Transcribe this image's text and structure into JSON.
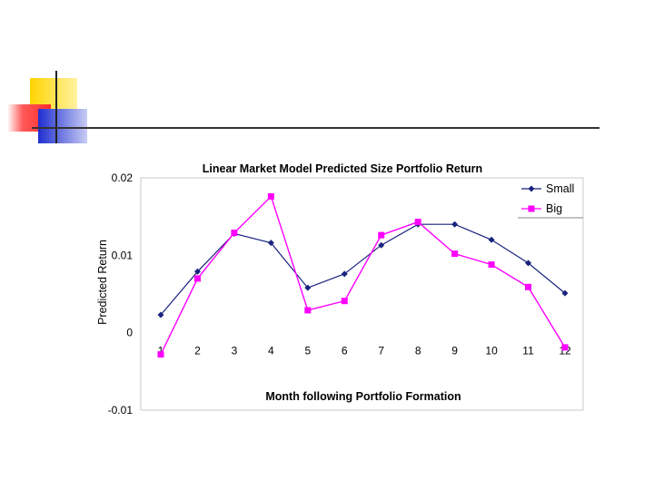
{
  "slide": {
    "accent_colors": {
      "yellow": "#ffd400",
      "red": "#ff3333",
      "blue": "#2233cc",
      "rule": "#333333"
    }
  },
  "chart_data": {
    "type": "line",
    "title": "Linear Market Model Predicted Size Portfolio Return",
    "xlabel": "Month following Portfolio Formation",
    "ylabel": "Predicted Return",
    "categories": [
      "1",
      "2",
      "3",
      "4",
      "5",
      "6",
      "7",
      "8",
      "9",
      "10",
      "11",
      "12"
    ],
    "ylim": [
      -0.01,
      0.02
    ],
    "yticks": [
      0.02,
      0.01,
      0,
      -0.01
    ],
    "ytick_labels": [
      "0.02",
      "0.01",
      "0",
      "-0.01"
    ],
    "grid": false,
    "legend_position": "top-right",
    "series": [
      {
        "name": "Small",
        "color": "#1a237e",
        "marker": "diamond",
        "values": [
          0.0023,
          0.0079,
          0.0128,
          0.0116,
          0.0058,
          0.0076,
          0.0113,
          0.014,
          0.014,
          0.012,
          0.009,
          0.0051
        ]
      },
      {
        "name": "Big",
        "color": "#ff00ff",
        "marker": "square",
        "values": [
          -0.0028,
          0.007,
          0.0129,
          0.0176,
          0.0029,
          0.0041,
          0.0126,
          0.0143,
          0.0102,
          0.0088,
          0.0059,
          -0.0019
        ]
      }
    ]
  }
}
